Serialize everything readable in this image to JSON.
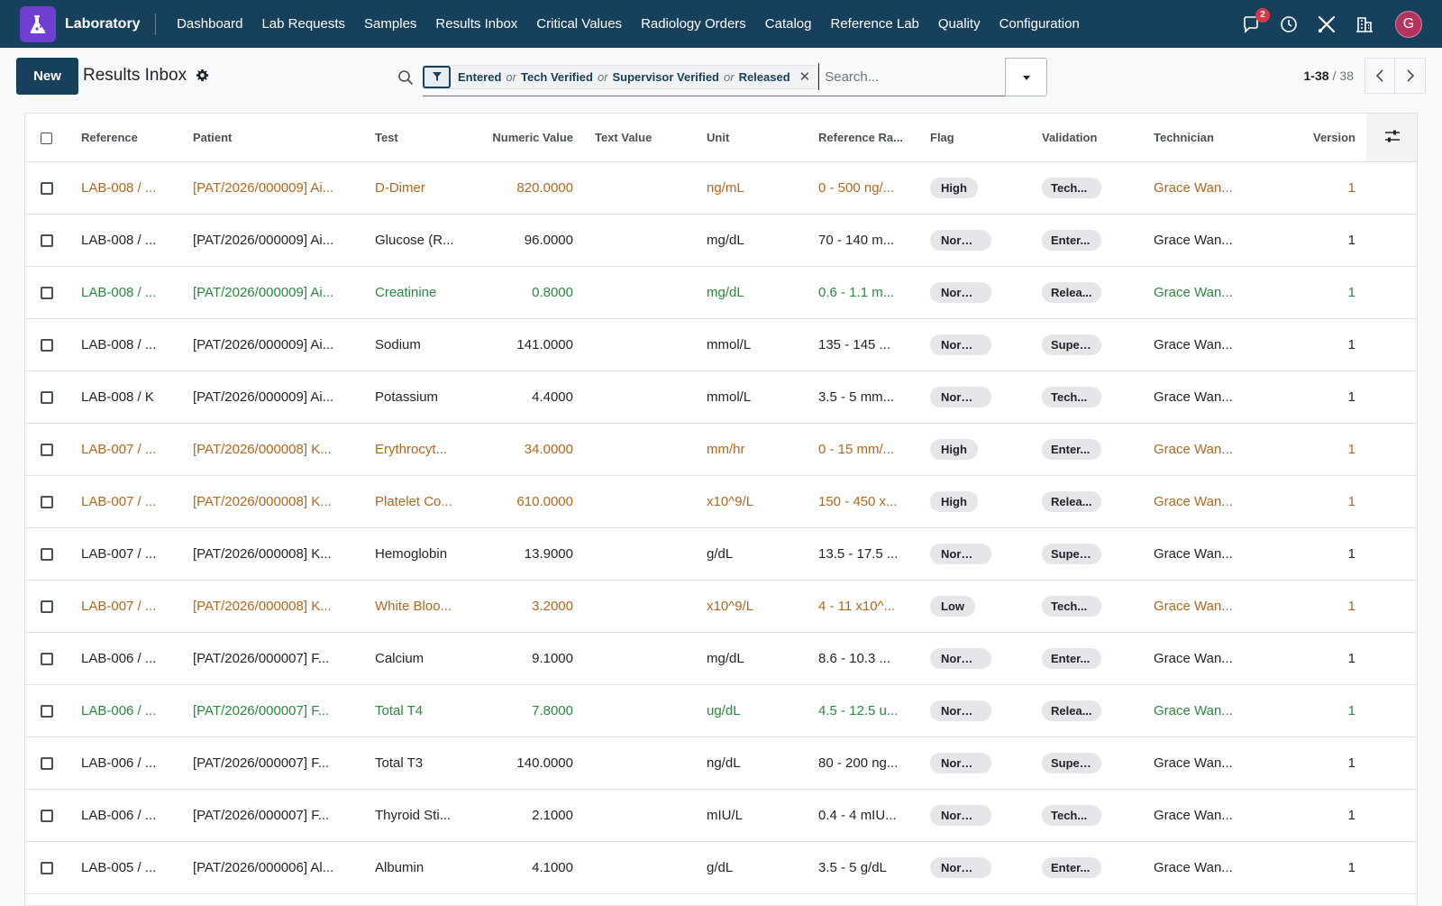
{
  "app": {
    "name": "Laboratory"
  },
  "nav": {
    "items": [
      "Dashboard",
      "Lab Requests",
      "Samples",
      "Results Inbox",
      "Critical Values",
      "Radiology Orders",
      "Catalog",
      "Reference Lab",
      "Quality",
      "Configuration"
    ],
    "message_count": "2",
    "avatar_initial": "G",
    "icons": [
      "chat-icon",
      "clock-icon",
      "tools-icon",
      "building-icon"
    ]
  },
  "control": {
    "new_label": "New",
    "title": "Results Inbox",
    "facet": {
      "values": [
        "Entered",
        "Tech Verified",
        "Supervisor Verified",
        "Released"
      ],
      "separator": "or"
    },
    "search_placeholder": "Search...",
    "pager": {
      "range": "1-38",
      "separator": "/",
      "total": "38"
    }
  },
  "table": {
    "columns": [
      "Reference",
      "Patient",
      "Test",
      "Numeric Value",
      "Text Value",
      "Unit",
      "Reference Ra...",
      "Flag",
      "Validation",
      "Technician",
      "Version"
    ],
    "rows": [
      {
        "style": "orange",
        "reference": "LAB-008 / ...",
        "patient": "[PAT/2026/000009] Ai...",
        "test": "D-Dimer",
        "numeric": "820.0000",
        "text": "",
        "unit": "ng/mL",
        "range": "0 - 500 ng/...",
        "flag": "High",
        "validation": "Tech...",
        "technician": "Grace Wan...",
        "version": "1"
      },
      {
        "style": "default",
        "reference": "LAB-008 / ...",
        "patient": "[PAT/2026/000009] Ai...",
        "test": "Glucose (R...",
        "numeric": "96.0000",
        "text": "",
        "unit": "mg/dL",
        "range": "70 - 140 m...",
        "flag": "Normal",
        "validation": "Enter...",
        "technician": "Grace Wan...",
        "version": "1"
      },
      {
        "style": "green",
        "reference": "LAB-008 / ...",
        "patient": "[PAT/2026/000009] Ai...",
        "test": "Creatinine",
        "numeric": "0.8000",
        "text": "",
        "unit": "mg/dL",
        "range": "0.6 - 1.1 m...",
        "flag": "Normal",
        "validation": "Relea...",
        "technician": "Grace Wan...",
        "version": "1"
      },
      {
        "style": "default",
        "reference": "LAB-008 / ...",
        "patient": "[PAT/2026/000009] Ai...",
        "test": "Sodium",
        "numeric": "141.0000",
        "text": "",
        "unit": "mmol/L",
        "range": "135 - 145 ...",
        "flag": "Normal",
        "validation": "Super...",
        "technician": "Grace Wan...",
        "version": "1"
      },
      {
        "style": "default",
        "reference": "LAB-008 / K",
        "patient": "[PAT/2026/000009] Ai...",
        "test": "Potassium",
        "numeric": "4.4000",
        "text": "",
        "unit": "mmol/L",
        "range": "3.5 - 5 mm...",
        "flag": "Normal",
        "validation": "Tech...",
        "technician": "Grace Wan...",
        "version": "1"
      },
      {
        "style": "orange",
        "reference": "LAB-007 / ...",
        "patient": "[PAT/2026/000008] K...",
        "test": "Erythrocyt...",
        "numeric": "34.0000",
        "text": "",
        "unit": "mm/hr",
        "range": "0 - 15 mm/...",
        "flag": "High",
        "validation": "Enter...",
        "technician": "Grace Wan...",
        "version": "1"
      },
      {
        "style": "orange",
        "reference": "LAB-007 / ...",
        "patient": "[PAT/2026/000008] K...",
        "test": "Platelet Co...",
        "numeric": "610.0000",
        "text": "",
        "unit": "x10^9/L",
        "range": "150 - 450 x...",
        "flag": "High",
        "validation": "Relea...",
        "technician": "Grace Wan...",
        "version": "1"
      },
      {
        "style": "default",
        "reference": "LAB-007 / ...",
        "patient": "[PAT/2026/000008] K...",
        "test": "Hemoglobin",
        "numeric": "13.9000",
        "text": "",
        "unit": "g/dL",
        "range": "13.5 - 17.5 ...",
        "flag": "Normal",
        "validation": "Super...",
        "technician": "Grace Wan...",
        "version": "1"
      },
      {
        "style": "orange",
        "reference": "LAB-007 / ...",
        "patient": "[PAT/2026/000008] K...",
        "test": "White Bloo...",
        "numeric": "3.2000",
        "text": "",
        "unit": "x10^9/L",
        "range": "4 - 11 x10^...",
        "flag": "Low",
        "validation": "Tech...",
        "technician": "Grace Wan...",
        "version": "1"
      },
      {
        "style": "default",
        "reference": "LAB-006 / ...",
        "patient": "[PAT/2026/000007] F...",
        "test": "Calcium",
        "numeric": "9.1000",
        "text": "",
        "unit": "mg/dL",
        "range": "8.6 - 10.3 ...",
        "flag": "Normal",
        "validation": "Enter...",
        "technician": "Grace Wan...",
        "version": "1"
      },
      {
        "style": "green",
        "reference": "LAB-006 / ...",
        "patient": "[PAT/2026/000007] F...",
        "test": "Total T4",
        "numeric": "7.8000",
        "text": "",
        "unit": "ug/dL",
        "range": "4.5 - 12.5 u...",
        "flag": "Normal",
        "validation": "Relea...",
        "technician": "Grace Wan...",
        "version": "1"
      },
      {
        "style": "default",
        "reference": "LAB-006 / ...",
        "patient": "[PAT/2026/000007] F...",
        "test": "Total T3",
        "numeric": "140.0000",
        "text": "",
        "unit": "ng/dL",
        "range": "80 - 200 ng...",
        "flag": "Normal",
        "validation": "Super...",
        "technician": "Grace Wan...",
        "version": "1"
      },
      {
        "style": "default",
        "reference": "LAB-006 / ...",
        "patient": "[PAT/2026/000007] F...",
        "test": "Thyroid Sti...",
        "numeric": "2.1000",
        "text": "",
        "unit": "mIU/L",
        "range": "0.4 - 4 mIU...",
        "flag": "Normal",
        "validation": "Tech...",
        "technician": "Grace Wan...",
        "version": "1"
      },
      {
        "style": "default",
        "reference": "LAB-005 / ...",
        "patient": "[PAT/2026/000006] Al...",
        "test": "Albumin",
        "numeric": "4.1000",
        "text": "",
        "unit": "g/dL",
        "range": "3.5 - 5 g/dL",
        "flag": "Normal",
        "validation": "Enter...",
        "technician": "Grace Wan...",
        "version": "1"
      }
    ]
  },
  "colors": {
    "navbar": "#17405c",
    "brand": "#6f3fd1",
    "warning_row": "#b5651d",
    "success_row": "#28893a",
    "badge": "#dc3545",
    "avatar": "#b5345e"
  }
}
